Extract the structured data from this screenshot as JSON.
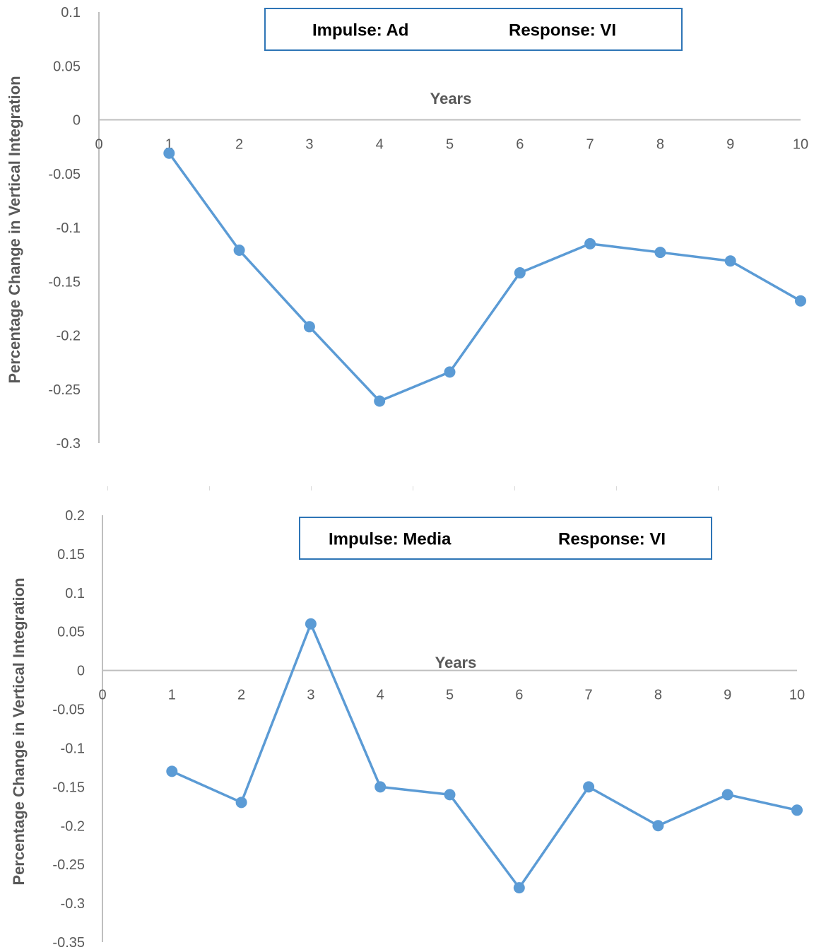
{
  "colors": {
    "series": "#5b9bd5",
    "axis": "#bfbfbf",
    "tick_text": "#595959",
    "legend_border": "#2e75b6"
  },
  "chart_data": [
    {
      "type": "line",
      "legend": {
        "impulse": "Impulse: Ad",
        "response": "Response: VI"
      },
      "xlabel": "Years",
      "ylabel": "Percentage Change in Vertical Integration",
      "x_ticks": [
        "0",
        "1",
        "2",
        "3",
        "4",
        "5",
        "6",
        "7",
        "8",
        "9",
        "10"
      ],
      "y_ticks": [
        "0.1",
        "0.05",
        "0",
        "-0.05",
        "-0.1",
        "-0.15",
        "-0.2",
        "-0.25",
        "-0.3"
      ],
      "xlim": [
        0,
        10
      ],
      "ylim": [
        -0.3,
        0.1
      ],
      "x": [
        1,
        2,
        3,
        4,
        5,
        6,
        7,
        8,
        9,
        10
      ],
      "values": [
        -0.031,
        -0.121,
        -0.192,
        -0.261,
        -0.234,
        -0.142,
        -0.115,
        -0.123,
        -0.131,
        -0.168
      ],
      "marker": "circle",
      "grid": false
    },
    {
      "type": "line",
      "legend": {
        "impulse": "Impulse: Media",
        "response": "Response: VI"
      },
      "xlabel": "Years",
      "ylabel": "Percentage Change in Vertical Integration",
      "x_ticks": [
        "0",
        "1",
        "2",
        "3",
        "4",
        "5",
        "6",
        "7",
        "8",
        "9",
        "10"
      ],
      "y_ticks": [
        "0.2",
        "0.15",
        "0.1",
        "0.05",
        "0",
        "-0.05",
        "-0.1",
        "-0.15",
        "-0.2",
        "-0.25",
        "-0.3",
        "-0.35"
      ],
      "xlim": [
        0,
        10
      ],
      "ylim": [
        -0.35,
        0.2
      ],
      "x": [
        1,
        2,
        3,
        4,
        5,
        6,
        7,
        8,
        9,
        10
      ],
      "values": [
        -0.13,
        -0.17,
        0.06,
        -0.15,
        -0.16,
        -0.28,
        -0.15,
        -0.2,
        -0.16,
        -0.18
      ],
      "marker": "circle",
      "grid": false
    }
  ]
}
